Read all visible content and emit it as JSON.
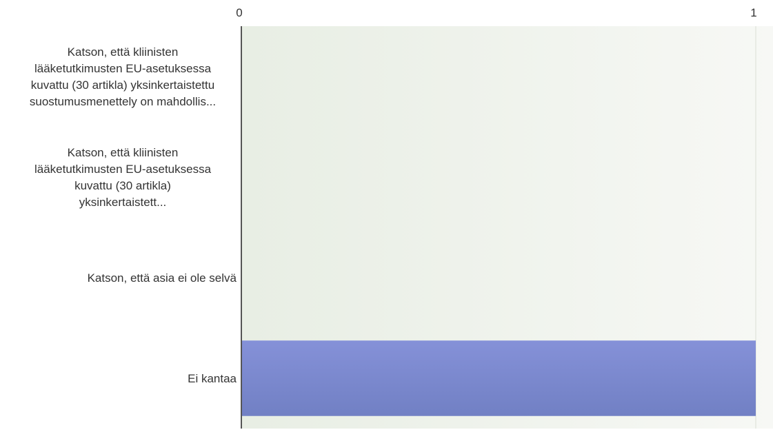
{
  "chart_data": {
    "type": "bar",
    "orientation": "horizontal",
    "categories": [
      [
        "Katson, että kliinisten",
        "lääketutkimusten EU-asetuksessa",
        "kuvattu (30 artikla) yksinkertaistettu",
        "suostumusmenettely on mahdollis..."
      ],
      [
        "Katson, että kliinisten",
        "lääketutkimusten EU-asetuksessa",
        "kuvattu (30 artikla)",
        "yksinkertaistett..."
      ],
      [
        "Katson, että asia ei ole selvä"
      ],
      [
        "Ei kantaa"
      ]
    ],
    "values": [
      0,
      0,
      0,
      1
    ],
    "xlim": [
      0,
      1
    ],
    "ticks": [
      {
        "value": 0,
        "label": "0"
      },
      {
        "value": 1,
        "label": "1"
      }
    ],
    "xlabel": "",
    "ylabel": "",
    "grid": true,
    "legend": "none",
    "colors": {
      "bar_top": "#8591d8",
      "bar_bottom": "#7180c4",
      "plot_bg_left": "#e8eee4",
      "plot_bg_right": "#f7f8f5",
      "axis": "#555555",
      "gridline": "#d9ded3",
      "text": "#333333"
    }
  }
}
